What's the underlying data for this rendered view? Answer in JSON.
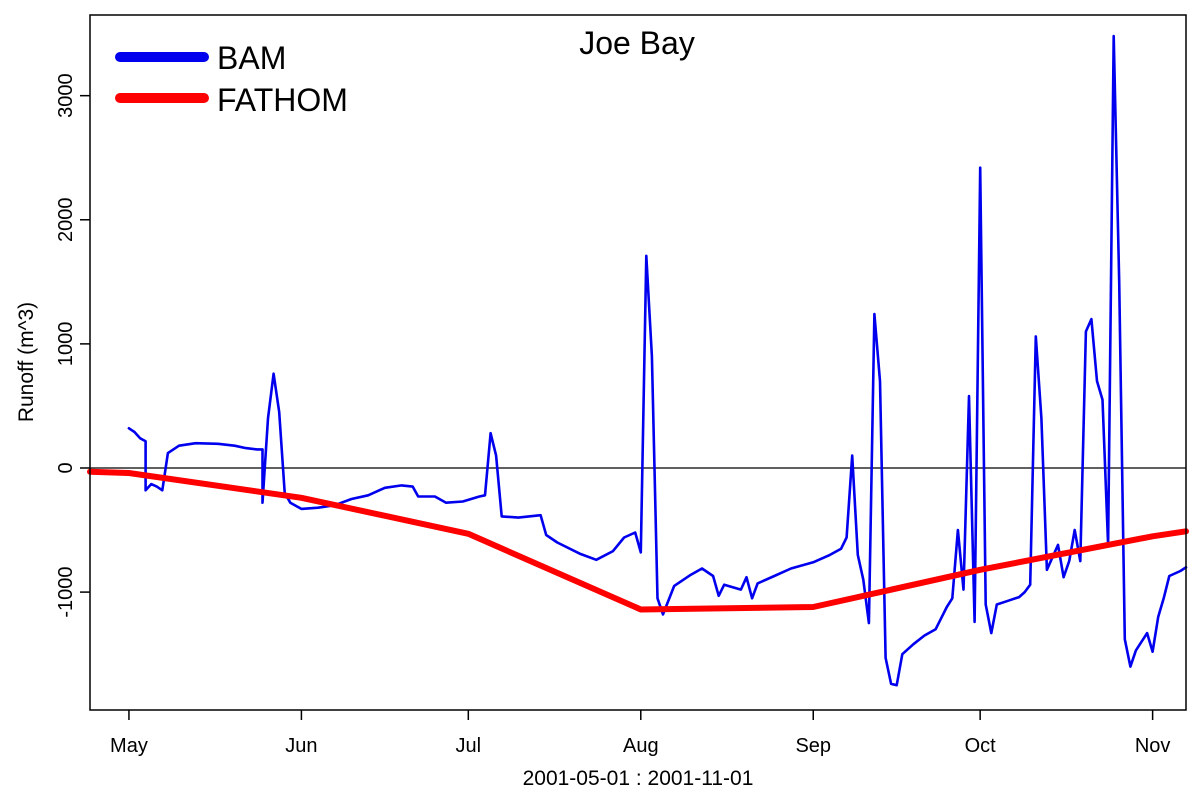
{
  "chart_data": {
    "type": "line",
    "title": "Joe Bay",
    "xlabel": "2001-05-01 : 2001-11-01",
    "ylabel": "Runoff (m^3)",
    "xlim": [
      "2001-04-24",
      "2001-11-07"
    ],
    "ylim": [
      -1950,
      3650
    ],
    "x_ticks": [
      {
        "date": "2001-05-01",
        "label": "May"
      },
      {
        "date": "2001-06-01",
        "label": "Jun"
      },
      {
        "date": "2001-07-01",
        "label": "Jul"
      },
      {
        "date": "2001-08-01",
        "label": "Aug"
      },
      {
        "date": "2001-09-01",
        "label": "Sep"
      },
      {
        "date": "2001-10-01",
        "label": "Oct"
      },
      {
        "date": "2001-11-01",
        "label": "Nov"
      }
    ],
    "y_ticks": [
      {
        "value": -1000,
        "label": "-1000"
      },
      {
        "value": 0,
        "label": "0"
      },
      {
        "value": 1000,
        "label": "1000"
      },
      {
        "value": 2000,
        "label": "2000"
      },
      {
        "value": 3000,
        "label": "3000"
      }
    ],
    "reference_line": 0,
    "legend": {
      "position": "top-left"
    },
    "series": [
      {
        "name": "BAM",
        "color": "#0000ee",
        "points": [
          [
            "2001-05-01",
            320
          ],
          [
            "2001-05-02",
            290
          ],
          [
            "2001-05-03",
            240
          ],
          [
            "2001-05-04",
            215
          ],
          [
            "2001-05-04",
            -180
          ],
          [
            "2001-05-05",
            -130
          ],
          [
            "2001-05-06",
            -150
          ],
          [
            "2001-05-07",
            -180
          ],
          [
            "2001-05-08",
            120
          ],
          [
            "2001-05-10",
            180
          ],
          [
            "2001-05-13",
            200
          ],
          [
            "2001-05-17",
            195
          ],
          [
            "2001-05-20",
            180
          ],
          [
            "2001-05-22",
            160
          ],
          [
            "2001-05-24",
            150
          ],
          [
            "2001-05-25",
            150
          ],
          [
            "2001-05-25",
            -280
          ],
          [
            "2001-05-26",
            400
          ],
          [
            "2001-05-27",
            760
          ],
          [
            "2001-05-28",
            450
          ],
          [
            "2001-05-29",
            -200
          ],
          [
            "2001-05-30",
            -280
          ],
          [
            "2001-06-01",
            -330
          ],
          [
            "2001-06-04",
            -320
          ],
          [
            "2001-06-07",
            -300
          ],
          [
            "2001-06-10",
            -250
          ],
          [
            "2001-06-13",
            -220
          ],
          [
            "2001-06-16",
            -160
          ],
          [
            "2001-06-19",
            -140
          ],
          [
            "2001-06-21",
            -150
          ],
          [
            "2001-06-22",
            -230
          ],
          [
            "2001-06-25",
            -230
          ],
          [
            "2001-06-27",
            -280
          ],
          [
            "2001-06-30",
            -270
          ],
          [
            "2001-07-03",
            -230
          ],
          [
            "2001-07-04",
            -220
          ],
          [
            "2001-07-05",
            280
          ],
          [
            "2001-07-06",
            100
          ],
          [
            "2001-07-07",
            -390
          ],
          [
            "2001-07-10",
            -400
          ],
          [
            "2001-07-14",
            -380
          ],
          [
            "2001-07-15",
            -540
          ],
          [
            "2001-07-17",
            -600
          ],
          [
            "2001-07-21",
            -690
          ],
          [
            "2001-07-24",
            -740
          ],
          [
            "2001-07-27",
            -670
          ],
          [
            "2001-07-29",
            -560
          ],
          [
            "2001-07-31",
            -520
          ],
          [
            "2001-08-01",
            -680
          ],
          [
            "2001-08-02",
            1710
          ],
          [
            "2001-08-03",
            900
          ],
          [
            "2001-08-04",
            -1050
          ],
          [
            "2001-08-05",
            -1180
          ],
          [
            "2001-08-07",
            -950
          ],
          [
            "2001-08-10",
            -860
          ],
          [
            "2001-08-12",
            -810
          ],
          [
            "2001-08-14",
            -870
          ],
          [
            "2001-08-15",
            -1030
          ],
          [
            "2001-08-16",
            -940
          ],
          [
            "2001-08-19",
            -980
          ],
          [
            "2001-08-20",
            -880
          ],
          [
            "2001-08-21",
            -1050
          ],
          [
            "2001-08-22",
            -930
          ],
          [
            "2001-08-25",
            -870
          ],
          [
            "2001-08-28",
            -810
          ],
          [
            "2001-09-01",
            -760
          ],
          [
            "2001-09-04",
            -700
          ],
          [
            "2001-09-06",
            -650
          ],
          [
            "2001-09-07",
            -560
          ],
          [
            "2001-09-08",
            100
          ],
          [
            "2001-09-09",
            -700
          ],
          [
            "2001-09-10",
            -900
          ],
          [
            "2001-09-11",
            -1250
          ],
          [
            "2001-09-12",
            1240
          ],
          [
            "2001-09-13",
            700
          ],
          [
            "2001-09-14",
            -1530
          ],
          [
            "2001-09-15",
            -1740
          ],
          [
            "2001-09-16",
            -1750
          ],
          [
            "2001-09-17",
            -1500
          ],
          [
            "2001-09-19",
            -1420
          ],
          [
            "2001-09-21",
            -1350
          ],
          [
            "2001-09-23",
            -1300
          ],
          [
            "2001-09-25",
            -1120
          ],
          [
            "2001-09-26",
            -1050
          ],
          [
            "2001-09-27",
            -500
          ],
          [
            "2001-09-28",
            -980
          ],
          [
            "2001-09-29",
            580
          ],
          [
            "2001-09-30",
            -1240
          ],
          [
            "2001-10-01",
            2420
          ],
          [
            "2001-10-02",
            -1100
          ],
          [
            "2001-10-03",
            -1330
          ],
          [
            "2001-10-04",
            -1100
          ],
          [
            "2001-10-06",
            -1070
          ],
          [
            "2001-10-08",
            -1040
          ],
          [
            "2001-10-09",
            -1000
          ],
          [
            "2001-10-10",
            -940
          ],
          [
            "2001-10-11",
            1060
          ],
          [
            "2001-10-12",
            400
          ],
          [
            "2001-10-13",
            -820
          ],
          [
            "2001-10-15",
            -620
          ],
          [
            "2001-10-16",
            -880
          ],
          [
            "2001-10-17",
            -750
          ],
          [
            "2001-10-18",
            -500
          ],
          [
            "2001-10-19",
            -750
          ],
          [
            "2001-10-20",
            1100
          ],
          [
            "2001-10-21",
            1200
          ],
          [
            "2001-10-22",
            700
          ],
          [
            "2001-10-23",
            550
          ],
          [
            "2001-10-24",
            -620
          ],
          [
            "2001-10-25",
            3480
          ],
          [
            "2001-10-26",
            1500
          ],
          [
            "2001-10-27",
            -1380
          ],
          [
            "2001-10-28",
            -1600
          ],
          [
            "2001-10-29",
            -1470
          ],
          [
            "2001-10-31",
            -1330
          ],
          [
            "2001-11-01",
            -1480
          ],
          [
            "2001-11-02",
            -1200
          ],
          [
            "2001-11-03",
            -1050
          ],
          [
            "2001-11-04",
            -870
          ],
          [
            "2001-11-06",
            -830
          ],
          [
            "2001-11-07",
            -800
          ]
        ]
      },
      {
        "name": "FATHOM",
        "color": "#ff0000",
        "points": [
          [
            "2001-04-24",
            -30
          ],
          [
            "2001-05-01",
            -40
          ],
          [
            "2001-06-01",
            -240
          ],
          [
            "2001-07-01",
            -530
          ],
          [
            "2001-08-01",
            -1140
          ],
          [
            "2001-09-01",
            -1120
          ],
          [
            "2001-10-01",
            -820
          ],
          [
            "2001-11-01",
            -550
          ],
          [
            "2001-11-07",
            -510
          ]
        ]
      }
    ]
  }
}
